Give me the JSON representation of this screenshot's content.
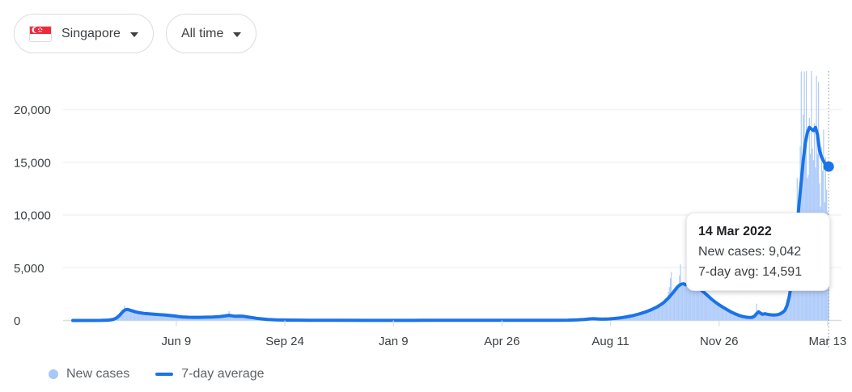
{
  "header": {
    "region_label": "Singapore",
    "time_range_label": "All time"
  },
  "tooltip": {
    "date": "14 Mar 2022",
    "row1": "New cases: 9,042",
    "row2": "7-day avg: 14,591"
  },
  "legend": {
    "items": [
      {
        "label": "New cases",
        "swatch": "dot",
        "color": "#a8c7fa"
      },
      {
        "label": "7-day average",
        "swatch": "line",
        "color": "#1a73e8"
      }
    ]
  },
  "colors": {
    "bar": "#aecbfa",
    "line": "#1a73e8",
    "grid": "#f1f3f4",
    "zero_line": "#dadce0",
    "tick": "#dadce0",
    "axis_text": "#3c4043",
    "cursor": "#9aa0a6",
    "flag_red": "#ee2b3c"
  },
  "chart_data": {
    "type": "bar+line",
    "title": "",
    "xlabel": "",
    "ylabel": "",
    "x_start_date": "28 Feb 2020",
    "ylim": [
      0,
      23600
    ],
    "grid": "horizontal-only",
    "legend_position": "bottom-left",
    "y_ticks": [
      {
        "label": "0",
        "value": 0
      },
      {
        "label": "5,000",
        "value": 5000
      },
      {
        "label": "10,000",
        "value": 10000
      },
      {
        "label": "15,000",
        "value": 15000
      },
      {
        "label": "20,000",
        "value": 20000
      }
    ],
    "x_ticks": [
      {
        "label": "Jun 9",
        "day": 102
      },
      {
        "label": "Sep 24",
        "day": 209
      },
      {
        "label": "Jan 9",
        "day": 316
      },
      {
        "label": "Apr 26",
        "day": 423
      },
      {
        "label": "Aug 11",
        "day": 530
      },
      {
        "label": "Nov 26",
        "day": 637
      },
      {
        "label": "Mar 13",
        "day": 744
      }
    ],
    "series": [
      {
        "name": "New cases",
        "type": "bar",
        "color": "#aecbfa",
        "keypoints": [
          [
            0,
            0
          ],
          [
            28,
            10
          ],
          [
            36,
            60
          ],
          [
            40,
            180
          ],
          [
            43,
            350
          ],
          [
            46,
            620
          ],
          [
            49,
            850
          ],
          [
            51,
            1430
          ],
          [
            52,
            1050
          ],
          [
            54,
            1120
          ],
          [
            56,
            1000
          ],
          [
            60,
            880
          ],
          [
            64,
            780
          ],
          [
            68,
            720
          ],
          [
            73,
            660
          ],
          [
            78,
            610
          ],
          [
            83,
            570
          ],
          [
            88,
            535
          ],
          [
            93,
            500
          ],
          [
            98,
            450
          ],
          [
            103,
            390
          ],
          [
            108,
            340
          ],
          [
            114,
            312
          ],
          [
            120,
            300
          ],
          [
            126,
            302
          ],
          [
            132,
            315
          ],
          [
            138,
            335
          ],
          [
            144,
            365
          ],
          [
            150,
            440
          ],
          [
            153,
            520
          ],
          [
            154,
            900
          ],
          [
            155,
            470
          ],
          [
            158,
            420
          ],
          [
            162,
            400
          ],
          [
            166,
            410
          ],
          [
            170,
            370
          ],
          [
            174,
            310
          ],
          [
            179,
            240
          ],
          [
            184,
            170
          ],
          [
            190,
            115
          ],
          [
            197,
            72
          ],
          [
            207,
            46
          ],
          [
            220,
            30
          ],
          [
            238,
            20
          ],
          [
            258,
            14
          ],
          [
            288,
            10
          ],
          [
            318,
            10
          ],
          [
            348,
            15
          ],
          [
            378,
            21
          ],
          [
            408,
            26
          ],
          [
            438,
            23
          ],
          [
            468,
            27
          ],
          [
            487,
            35
          ],
          [
            496,
            58
          ],
          [
            503,
            105
          ],
          [
            509,
            150
          ],
          [
            513,
            170
          ],
          [
            517,
            152
          ],
          [
            522,
            130
          ],
          [
            528,
            148
          ],
          [
            534,
            195
          ],
          [
            540,
            265
          ],
          [
            546,
            360
          ],
          [
            552,
            480
          ],
          [
            558,
            635
          ],
          [
            564,
            820
          ],
          [
            570,
            1050
          ],
          [
            576,
            1340
          ],
          [
            582,
            1720
          ],
          [
            586,
            2150
          ],
          [
            590,
            4600
          ],
          [
            591,
            2600
          ],
          [
            594,
            3100
          ],
          [
            597,
            3400
          ],
          [
            599,
            5320
          ],
          [
            600,
            3500
          ],
          [
            603,
            3450
          ],
          [
            605,
            3550
          ],
          [
            607,
            5000
          ],
          [
            608,
            3450
          ],
          [
            611,
            3400
          ],
          [
            614,
            3250
          ],
          [
            618,
            3000
          ],
          [
            622,
            2700
          ],
          [
            626,
            2360
          ],
          [
            630,
            2010
          ],
          [
            634,
            1710
          ],
          [
            638,
            1440
          ],
          [
            642,
            1200
          ],
          [
            646,
            980
          ],
          [
            650,
            770
          ],
          [
            654,
            600
          ],
          [
            658,
            460
          ],
          [
            662,
            355
          ],
          [
            666,
            300
          ],
          [
            669,
            300
          ],
          [
            671,
            330
          ],
          [
            673,
            480
          ],
          [
            674,
            1600
          ],
          [
            675,
            760
          ],
          [
            677,
            850
          ],
          [
            679,
            640
          ],
          [
            681,
            670
          ],
          [
            683,
            630
          ],
          [
            685,
            590
          ],
          [
            687,
            560
          ],
          [
            690,
            540
          ],
          [
            693,
            560
          ],
          [
            696,
            640
          ],
          [
            699,
            780
          ],
          [
            701,
            1000
          ],
          [
            703,
            1500
          ],
          [
            705,
            2300
          ],
          [
            707,
            3600
          ],
          [
            709,
            4600
          ],
          [
            710,
            7000
          ],
          [
            711,
            5800
          ],
          [
            712,
            9800
          ],
          [
            713,
            8500
          ],
          [
            714,
            13500
          ],
          [
            715,
            10500
          ],
          [
            716,
            12000
          ],
          [
            717,
            16500
          ],
          [
            718,
            23600
          ],
          [
            719,
            14800
          ],
          [
            720,
            19500
          ],
          [
            721,
            23600
          ],
          [
            722,
            16000
          ],
          [
            723,
            26100
          ],
          [
            724,
            13500
          ],
          [
            725,
            13800
          ],
          [
            726,
            19200
          ],
          [
            727,
            15800
          ],
          [
            728,
            24600
          ],
          [
            729,
            16300
          ],
          [
            730,
            15200
          ],
          [
            731,
            18700
          ],
          [
            732,
            14500
          ],
          [
            733,
            23200
          ],
          [
            734,
            15800
          ],
          [
            735,
            22600
          ],
          [
            736,
            13000
          ],
          [
            737,
            10800
          ],
          [
            738,
            16400
          ],
          [
            739,
            14200
          ],
          [
            740,
            18100
          ],
          [
            741,
            11200
          ],
          [
            742,
            15500
          ],
          [
            743,
            12400
          ],
          [
            744,
            10300
          ],
          [
            745,
            9042
          ]
        ]
      },
      {
        "name": "7-day average",
        "type": "line",
        "color": "#1a73e8",
        "keypoints": [
          [
            0,
            0
          ],
          [
            28,
            8
          ],
          [
            36,
            40
          ],
          [
            40,
            110
          ],
          [
            43,
            230
          ],
          [
            46,
            480
          ],
          [
            48,
            700
          ],
          [
            50,
            900
          ],
          [
            52,
            1030
          ],
          [
            54,
            1050
          ],
          [
            56,
            990
          ],
          [
            59,
            900
          ],
          [
            62,
            810
          ],
          [
            66,
            730
          ],
          [
            70,
            675
          ],
          [
            75,
            630
          ],
          [
            80,
            590
          ],
          [
            85,
            555
          ],
          [
            90,
            525
          ],
          [
            95,
            485
          ],
          [
            100,
            430
          ],
          [
            104,
            375
          ],
          [
            108,
            335
          ],
          [
            114,
            308
          ],
          [
            120,
            298
          ],
          [
            126,
            300
          ],
          [
            132,
            312
          ],
          [
            138,
            332
          ],
          [
            144,
            362
          ],
          [
            150,
            430
          ],
          [
            154,
            490
          ],
          [
            157,
            440
          ],
          [
            160,
            395
          ],
          [
            164,
            415
          ],
          [
            168,
            395
          ],
          [
            172,
            340
          ],
          [
            176,
            280
          ],
          [
            181,
            210
          ],
          [
            186,
            150
          ],
          [
            192,
            103
          ],
          [
            200,
            62
          ],
          [
            210,
            40
          ],
          [
            222,
            28
          ],
          [
            240,
            18
          ],
          [
            260,
            13
          ],
          [
            290,
            10
          ],
          [
            320,
            10
          ],
          [
            350,
            14
          ],
          [
            380,
            20
          ],
          [
            410,
            25
          ],
          [
            440,
            22
          ],
          [
            470,
            26
          ],
          [
            488,
            34
          ],
          [
            497,
            55
          ],
          [
            504,
            100
          ],
          [
            509,
            145
          ],
          [
            513,
            165
          ],
          [
            517,
            148
          ],
          [
            522,
            126
          ],
          [
            528,
            142
          ],
          [
            534,
            188
          ],
          [
            540,
            255
          ],
          [
            546,
            345
          ],
          [
            552,
            460
          ],
          [
            558,
            610
          ],
          [
            564,
            790
          ],
          [
            570,
            1010
          ],
          [
            576,
            1290
          ],
          [
            582,
            1660
          ],
          [
            587,
            2120
          ],
          [
            592,
            2680
          ],
          [
            596,
            3180
          ],
          [
            599,
            3420
          ],
          [
            602,
            3480
          ],
          [
            604,
            3390
          ],
          [
            607,
            3520
          ],
          [
            610,
            3450
          ],
          [
            613,
            3310
          ],
          [
            617,
            3060
          ],
          [
            621,
            2760
          ],
          [
            625,
            2420
          ],
          [
            629,
            2070
          ],
          [
            633,
            1760
          ],
          [
            637,
            1490
          ],
          [
            641,
            1240
          ],
          [
            645,
            1020
          ],
          [
            649,
            800
          ],
          [
            653,
            620
          ],
          [
            657,
            470
          ],
          [
            661,
            360
          ],
          [
            665,
            300
          ],
          [
            668,
            290
          ],
          [
            670,
            310
          ],
          [
            672,
            420
          ],
          [
            674,
            650
          ],
          [
            676,
            820
          ],
          [
            678,
            680
          ],
          [
            680,
            580
          ],
          [
            682,
            645
          ],
          [
            684,
            600
          ],
          [
            686,
            560
          ],
          [
            688,
            540
          ],
          [
            691,
            520
          ],
          [
            694,
            540
          ],
          [
            697,
            620
          ],
          [
            700,
            780
          ],
          [
            702,
            980
          ],
          [
            704,
            1400
          ],
          [
            706,
            2200
          ],
          [
            708,
            3300
          ],
          [
            710,
            4800
          ],
          [
            712,
            6800
          ],
          [
            714,
            9000
          ],
          [
            716,
            11200
          ],
          [
            718,
            13200
          ],
          [
            720,
            15200
          ],
          [
            722,
            16800
          ],
          [
            724,
            17800
          ],
          [
            726,
            18300
          ],
          [
            728,
            18150
          ],
          [
            730,
            18000
          ],
          [
            732,
            18300
          ],
          [
            734,
            17600
          ],
          [
            735,
            16900
          ],
          [
            736,
            16100
          ],
          [
            738,
            15500
          ],
          [
            740,
            15100
          ],
          [
            742,
            14750
          ],
          [
            745,
            14591
          ]
        ]
      }
    ],
    "highlight": {
      "day": 745,
      "date": "14 Mar 2022",
      "new_cases": 9042,
      "seven_day_avg": 14591
    }
  }
}
